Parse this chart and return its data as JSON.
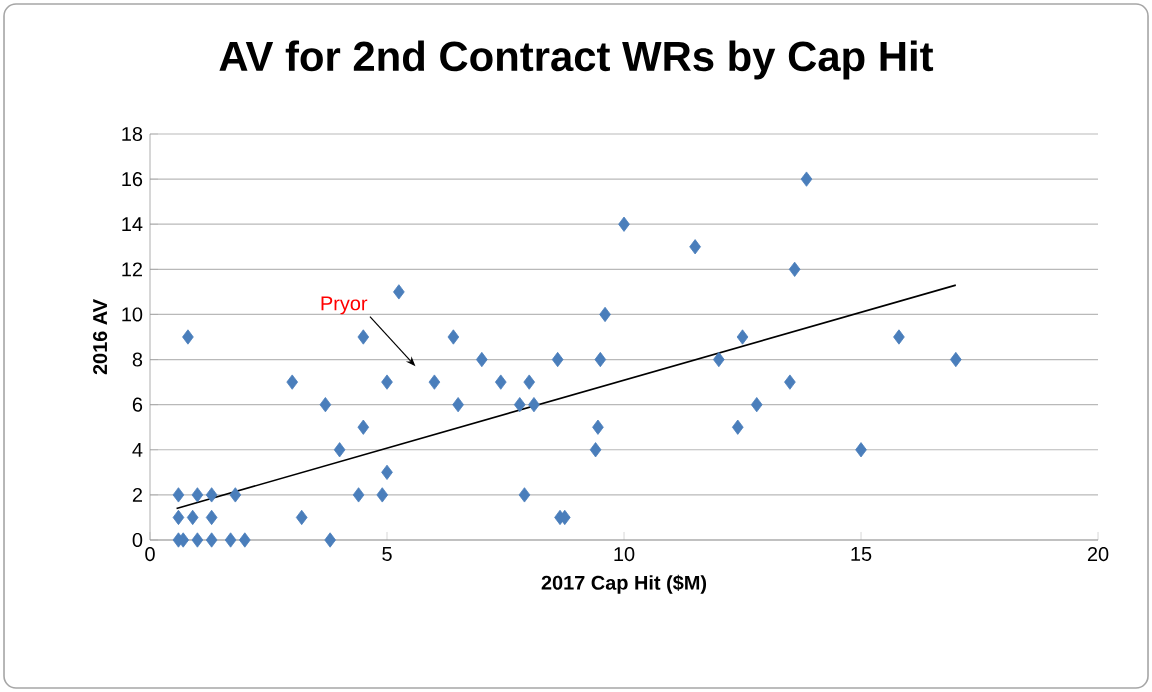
{
  "chart_data": {
    "type": "scatter",
    "title": "AV for 2nd Contract WRs by Cap Hit",
    "xlabel": "2017 Cap Hit ($M)",
    "ylabel": "2016 AV",
    "xlim": [
      0,
      20
    ],
    "xticks": [
      0,
      5,
      10,
      15,
      20
    ],
    "ylim": [
      0,
      18
    ],
    "yticks": [
      0,
      2,
      4,
      6,
      8,
      10,
      12,
      14,
      16,
      18
    ],
    "grid": "y",
    "marker": "diamond",
    "series": [
      {
        "color": "#4a7ebb",
        "x": [
          0.6,
          0.7,
          1.0,
          1.3,
          1.7,
          2.0,
          0.6,
          0.9,
          1.3,
          0.6,
          1.0,
          1.3,
          1.8,
          0.8,
          3.0,
          3.2,
          3.7,
          3.8,
          4.0,
          4.5,
          4.5,
          4.4,
          4.9,
          5.0,
          5.0,
          5.25,
          6.0,
          6.4,
          6.5,
          7.0,
          7.4,
          8.0,
          7.8,
          8.1,
          7.9,
          8.6,
          8.65,
          8.75,
          9.4,
          9.45,
          9.5,
          9.6,
          10.0,
          11.5,
          12.0,
          12.4,
          12.5,
          12.8,
          13.5,
          13.6,
          13.85,
          15.0,
          15.8,
          17.0
        ],
        "values": [
          0,
          0,
          0,
          0,
          0,
          0,
          1,
          1,
          1,
          2,
          2,
          2,
          2,
          9,
          7,
          1,
          6,
          0,
          4,
          5,
          9,
          2,
          2,
          3,
          7,
          11,
          7,
          9,
          6,
          8,
          7,
          7,
          6,
          6,
          2,
          8,
          1,
          1,
          4,
          5,
          8,
          10,
          14,
          13,
          8,
          5,
          9,
          6,
          7,
          12,
          16,
          4,
          9,
          8
        ]
      },
      {
        "type": "line",
        "color": "#000000",
        "marker": "none",
        "x": [
          0.56,
          17.0
        ],
        "values": [
          1.4,
          11.3
        ]
      }
    ],
    "annotations": [
      "Pryor"
    ]
  }
}
